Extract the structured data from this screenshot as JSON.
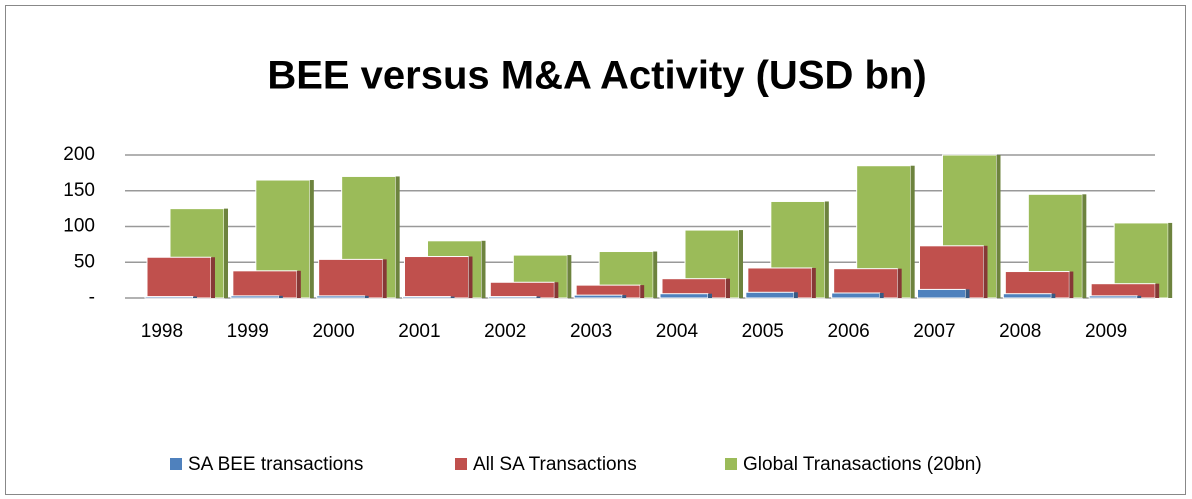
{
  "chart_data": {
    "type": "bar",
    "title": "BEE versus M&A Activity (USD bn)",
    "categories": [
      "1998",
      "1999",
      "2000",
      "2001",
      "2002",
      "2003",
      "2004",
      "2005",
      "2006",
      "2007",
      "2008",
      "2009"
    ],
    "series": [
      {
        "name": "SA BEE transactions",
        "color": "#4f81bd",
        "values": [
          2,
          3,
          3,
          2,
          2,
          4,
          6,
          8,
          7,
          12,
          6,
          3
        ]
      },
      {
        "name": "All SA Transactions",
        "color": "#c0504d",
        "values": [
          57,
          38,
          54,
          58,
          22,
          18,
          27,
          42,
          41,
          73,
          37,
          20
        ]
      },
      {
        "name": "Global Tranasactions (20bn)",
        "color": "#9bbb59",
        "values": [
          125,
          165,
          170,
          80,
          60,
          65,
          95,
          135,
          185,
          200,
          145,
          105
        ]
      }
    ],
    "ylim": [
      0,
      200
    ],
    "yticks": [
      {
        "value": 0,
        "label": "-"
      },
      50,
      100,
      150,
      200
    ],
    "grid": true,
    "legend": "bottom"
  }
}
